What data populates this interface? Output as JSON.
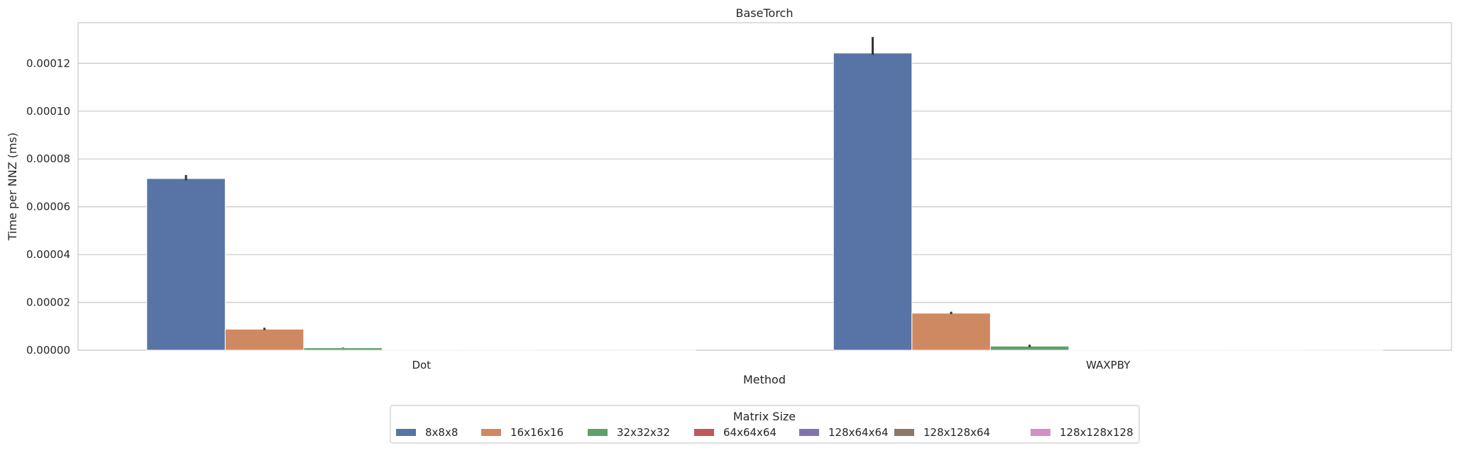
{
  "chart_data": {
    "type": "bar",
    "title": "BaseTorch",
    "xlabel": "Method",
    "ylabel": "Time per NNZ (ms)",
    "categories": [
      "Dot",
      "WAXPBY"
    ],
    "ylim": [
      0,
      0.000137
    ],
    "yticks": [
      "0.00000",
      "0.00002",
      "0.00004",
      "0.00006",
      "0.00008",
      "0.00010",
      "0.00012"
    ],
    "ytick_values": [
      0,
      2e-05,
      4e-05,
      6e-05,
      8e-05,
      0.0001,
      0.00012
    ],
    "grid": "horizontal",
    "legend": {
      "title": "Matrix Size",
      "placement": "bottom-center"
    },
    "series": [
      {
        "name": "8x8x8",
        "color": "#5874a6",
        "values": [
          7.18e-05,
          0.0001243
        ],
        "error": [
          [
            7.1e-05,
            7.33e-05
          ],
          [
            0.0001235,
            0.000131
          ]
        ]
      },
      {
        "name": "16x16x16",
        "color": "#cf8962",
        "values": [
          8.8e-06,
          1.55e-05
        ],
        "error": [
          [
            8.4e-06,
            9.4e-06
          ],
          [
            1.51e-05,
            1.61e-05
          ]
        ]
      },
      {
        "name": "32x32x32",
        "color": "#5f9f69",
        "values": [
          1e-06,
          1.7e-06
        ],
        "error": [
          [
            9e-07,
            1.1e-06
          ],
          [
            1.3e-06,
            2.3e-06
          ]
        ]
      },
      {
        "name": "64x64x64",
        "color": "#c0575a",
        "values": [
          1e-07,
          2e-07
        ],
        "error": null
      },
      {
        "name": "128x64x64",
        "color": "#8273b0",
        "values": [
          5e-08,
          1e-07
        ],
        "error": null
      },
      {
        "name": "128x128x64",
        "color": "#8d7765",
        "values": [
          3e-08,
          5e-08
        ],
        "error": null
      },
      {
        "name": "128x128x128",
        "color": "#d191c4",
        "values": [
          2e-08,
          3e-08
        ],
        "error": null
      }
    ]
  }
}
